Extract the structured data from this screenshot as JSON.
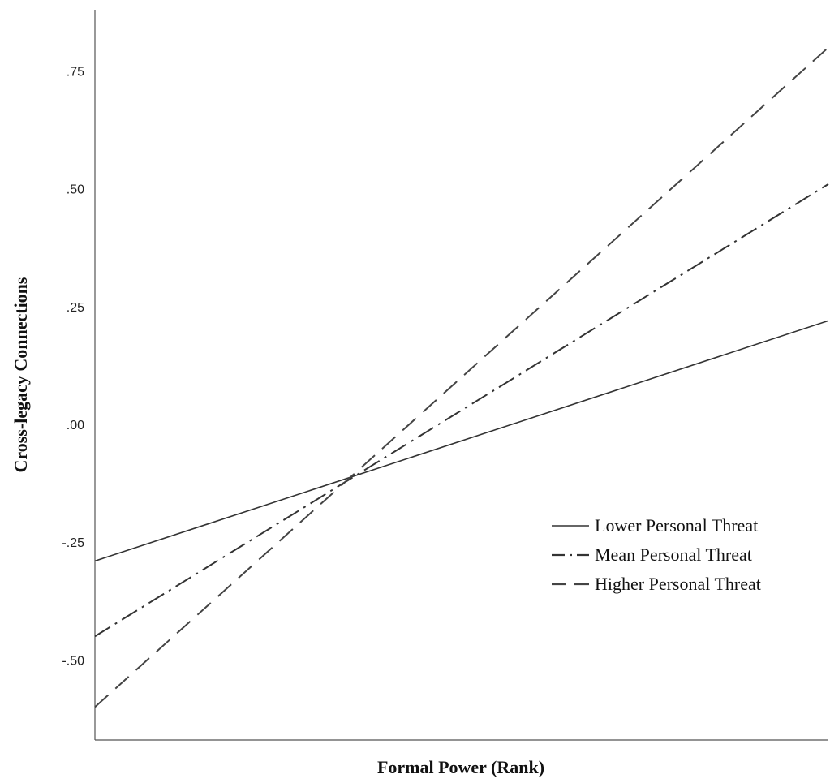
{
  "chart_data": {
    "type": "line",
    "xlabel": "Formal Power (Rank)",
    "ylabel": "Cross-legacy Connections",
    "x": [
      0,
      1
    ],
    "ylim": [
      -0.67,
      0.88
    ],
    "yticks": [
      -0.5,
      -0.25,
      0.0,
      0.25,
      0.5,
      0.75
    ],
    "ytick_labels": [
      "-.50",
      "-.25",
      ".00",
      ".25",
      ".50",
      ".75"
    ],
    "grid": false,
    "legend_position": "right",
    "series": [
      {
        "name": "Lower Personal Threat",
        "values": [
          -0.29,
          0.22
        ],
        "style": "solid",
        "color": "#333333"
      },
      {
        "name": "Mean Personal Threat",
        "values": [
          -0.45,
          0.51
        ],
        "style": "dash-dot",
        "color": "#333333"
      },
      {
        "name": "Higher Personal Threat",
        "values": [
          -0.6,
          0.8
        ],
        "style": "dashed",
        "color": "#444444"
      }
    ]
  }
}
